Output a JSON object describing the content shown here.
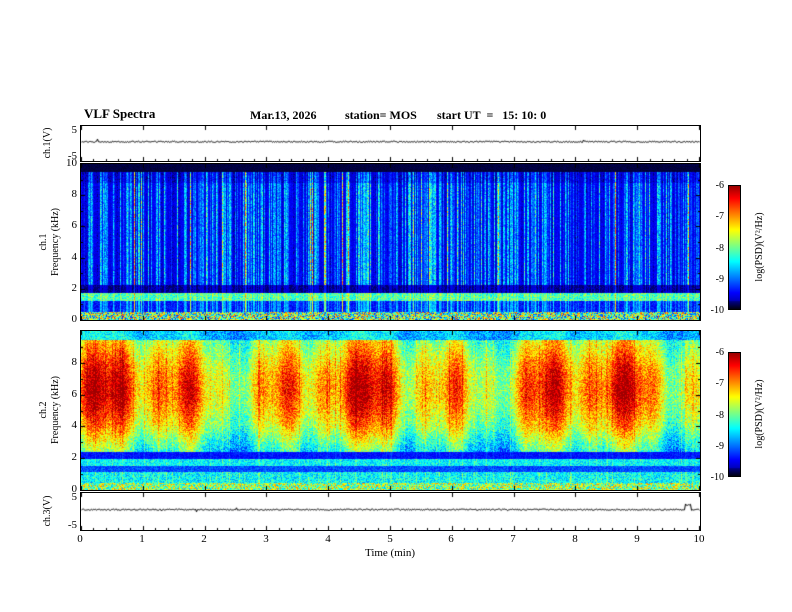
{
  "header": {
    "title": "VLF Spectra",
    "date": "Mar.13, 2026",
    "station": "station= MOS",
    "start_ut": "start UT  =   15: 10: 0"
  },
  "axes": {
    "time_label": "Time (min)",
    "time_ticks": [
      "0",
      "1",
      "2",
      "3",
      "4",
      "5",
      "6",
      "7",
      "8",
      "9",
      "10"
    ],
    "time_range_min": [
      0,
      10
    ]
  },
  "colorbar": {
    "label": "log(PSD)(V²/Hz)",
    "ticks": [
      "-6",
      "-7",
      "-8",
      "-9",
      "-10"
    ],
    "range": [
      -10,
      -6
    ]
  },
  "colors": {
    "background": "#ffffff",
    "frame": "#000000",
    "colormap": "jet (red at -6, dark blue/black at -10)"
  },
  "chart_data": [
    {
      "type": "line",
      "name": "ch1-voltage",
      "ylabel": "ch.1(V)",
      "ylim": [
        -5,
        5
      ],
      "yticks": [
        "5",
        "-5"
      ],
      "xlim_min": [
        0,
        10
      ],
      "series_summary": "flat noisy trace near 0 V for the full 10 minutes"
    },
    {
      "type": "heatmap",
      "name": "ch1-spectrogram",
      "ylabel_line1": "ch.1",
      "ylabel_line2": "Frequency (kHz)",
      "ylim_khz": [
        0,
        10
      ],
      "yticks": [
        "10",
        "8",
        "6",
        "4",
        "2",
        "0"
      ],
      "xlim_min": [
        0,
        10
      ],
      "psd_range": [
        -10,
        -6
      ],
      "pattern": {
        "background_psd": -9.7,
        "streak_fraction": 0.5,
        "streak_psd_max": -7.2,
        "bands": [
          {
            "f_khz": [
              9.55,
              10
            ],
            "psd": -10,
            "note": "black band at top edge"
          },
          {
            "f_khz": [
              1.25,
              1.75
            ],
            "psd": -8.3,
            "note": "bright cyan horizontal band"
          },
          {
            "f_khz": [
              1.75,
              2.25
            ],
            "psd": -9.9,
            "note": "dark band"
          },
          {
            "f_khz": [
              0,
              0.55
            ],
            "psd": -7.9,
            "note": "bright noisy bottom edge"
          }
        ],
        "note": "dense vertical sferic streaks (blue/green/cyan, occasional yellow) over near-black background between 2 and 9.5 kHz"
      }
    },
    {
      "type": "heatmap",
      "name": "ch2-spectrogram",
      "ylabel_line1": "ch.2",
      "ylabel_line2": "Frequency (kHz)",
      "ylim_khz": [
        0,
        10
      ],
      "yticks": [
        "8",
        "6",
        "4",
        "2",
        "0"
      ],
      "xlim_min": [
        0,
        10
      ],
      "psd_range": [
        -10,
        -6
      ],
      "pattern": {
        "broadband_khz": [
          2.5,
          9.2
        ],
        "broadband_psd_mean": -7.0,
        "hot_center_khz": 6.4,
        "hot_psd": -6.2,
        "dark_band_khz": [
          1.95,
          2.45
        ],
        "low_band_khz": [
          0,
          1.95
        ],
        "low_band_psd": -8.6,
        "note": "intense red/orange blobs 5-8 kHz over yellow-green broadband, blue/cyan below 2 kHz with dark horizontal lines"
      }
    },
    {
      "type": "line",
      "name": "ch3-voltage",
      "ylabel": "ch.3(V)",
      "ylim": [
        -5,
        5
      ],
      "yticks": [
        "5",
        "-5"
      ],
      "xlim_min": [
        0,
        10
      ],
      "series_summary": "flat noisy trace near 0 V with a small spike near 9.8 min"
    }
  ]
}
